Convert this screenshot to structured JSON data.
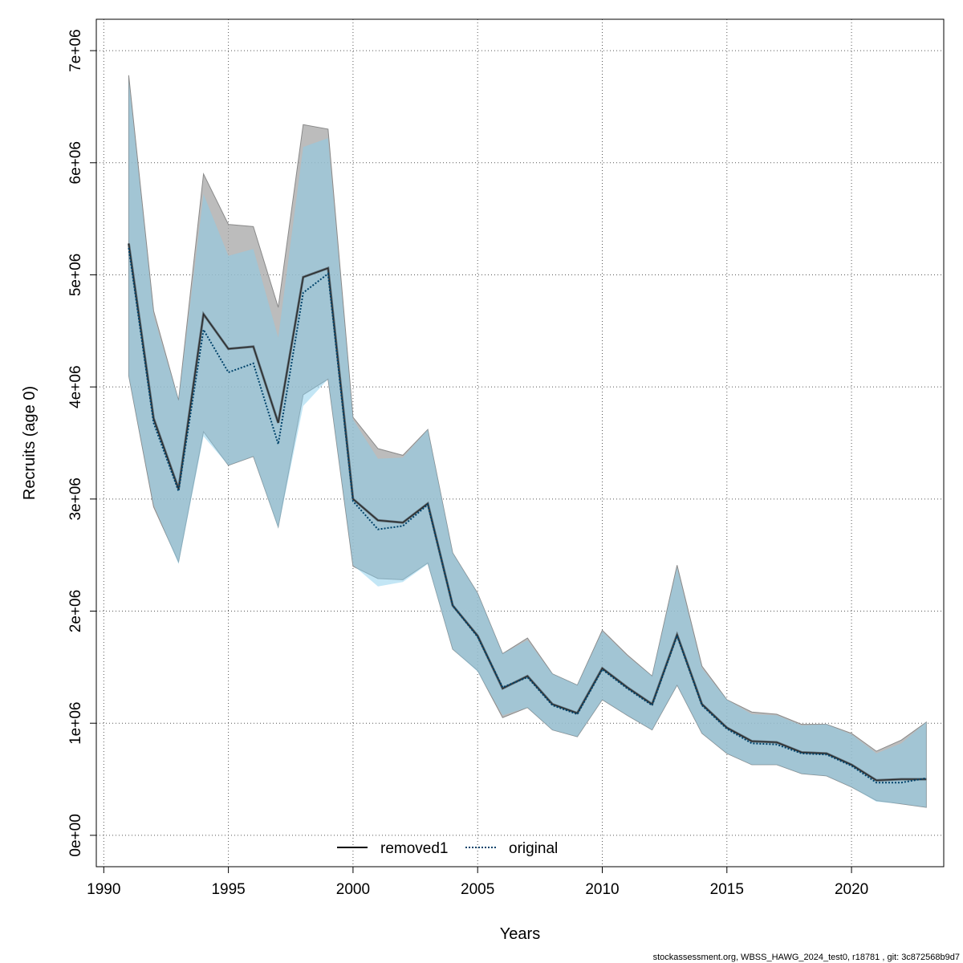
{
  "chart_data": {
    "type": "line",
    "title": "",
    "xlabel": "Years",
    "ylabel": "Recruits (age 0)",
    "xlim": [
      1990,
      2023
    ],
    "ylim": [
      0,
      7000000
    ],
    "x_ticks": [
      1990,
      1995,
      2000,
      2005,
      2010,
      2015,
      2020
    ],
    "x_tick_labels": [
      "1990",
      "1995",
      "2000",
      "2005",
      "2010",
      "2015",
      "2020"
    ],
    "y_ticks": [
      0,
      1000000,
      2000000,
      3000000,
      4000000,
      5000000,
      6000000,
      7000000
    ],
    "y_tick_labels": [
      "0e+00",
      "1e+06",
      "2e+06",
      "3e+06",
      "4e+06",
      "5e+06",
      "6e+06",
      "7e+06"
    ],
    "grid": true,
    "legend_position": "bottom-center",
    "x": [
      1991,
      1992,
      1993,
      1994,
      1995,
      1996,
      1997,
      1998,
      1999,
      2000,
      2001,
      2002,
      2003,
      2004,
      2005,
      2006,
      2007,
      2008,
      2009,
      2010,
      2011,
      2012,
      2013,
      2014,
      2015,
      2016,
      2017,
      2018,
      2019,
      2020,
      2021,
      2022,
      2023
    ],
    "series": [
      {
        "name": "removed1",
        "line_color": "#000000",
        "line_style": "solid",
        "band_color": "#a6a6a6",
        "values": [
          5280000,
          3720000,
          3090000,
          4650000,
          4340000,
          4360000,
          3680000,
          4980000,
          5060000,
          3000000,
          2810000,
          2790000,
          2960000,
          2050000,
          1780000,
          1310000,
          1420000,
          1170000,
          1090000,
          1490000,
          1320000,
          1170000,
          1790000,
          1170000,
          960000,
          840000,
          830000,
          740000,
          730000,
          630000,
          490000,
          500000,
          500000
        ],
        "lower": [
          4100000,
          2930000,
          2440000,
          3600000,
          3300000,
          3380000,
          2750000,
          3930000,
          4070000,
          2400000,
          2290000,
          2280000,
          2430000,
          1660000,
          1470000,
          1050000,
          1140000,
          940000,
          880000,
          1210000,
          1070000,
          940000,
          1340000,
          910000,
          730000,
          630000,
          630000,
          550000,
          530000,
          430000,
          310000,
          280000,
          250000
        ],
        "upper": [
          6780000,
          4680000,
          3880000,
          5900000,
          5450000,
          5430000,
          4710000,
          6340000,
          6300000,
          3730000,
          3450000,
          3390000,
          3620000,
          2520000,
          2160000,
          1620000,
          1760000,
          1440000,
          1340000,
          1830000,
          1610000,
          1420000,
          2410000,
          1510000,
          1210000,
          1100000,
          1080000,
          990000,
          990000,
          910000,
          750000,
          850000,
          1010000
        ]
      },
      {
        "name": "original",
        "line_color": "#00436b",
        "line_style": "dotted",
        "band_color": "#87ceeb",
        "values": [
          5240000,
          3680000,
          3070000,
          4510000,
          4130000,
          4210000,
          3490000,
          4840000,
          5010000,
          2980000,
          2730000,
          2760000,
          2950000,
          2050000,
          1770000,
          1320000,
          1410000,
          1160000,
          1080000,
          1480000,
          1310000,
          1160000,
          1780000,
          1160000,
          950000,
          820000,
          810000,
          730000,
          720000,
          620000,
          470000,
          470000,
          510000
        ],
        "lower": [
          4100000,
          2950000,
          2420000,
          3560000,
          3300000,
          3380000,
          2740000,
          3830000,
          4070000,
          2410000,
          2220000,
          2260000,
          2420000,
          1660000,
          1460000,
          1070000,
          1140000,
          940000,
          880000,
          1210000,
          1070000,
          940000,
          1340000,
          910000,
          730000,
          630000,
          630000,
          550000,
          530000,
          430000,
          300000,
          280000,
          250000
        ],
        "upper": [
          6740000,
          4640000,
          3880000,
          5720000,
          5170000,
          5230000,
          4440000,
          6140000,
          6220000,
          3710000,
          3360000,
          3370000,
          3620000,
          2520000,
          2160000,
          1620000,
          1740000,
          1440000,
          1340000,
          1820000,
          1600000,
          1420000,
          2390000,
          1490000,
          1210000,
          1080000,
          1070000,
          980000,
          990000,
          900000,
          730000,
          820000,
          1010000
        ]
      }
    ],
    "footer": "stockassessment.org, WBSS_HAWG_2024_test0, r18781 , git: 3c872568b9d7"
  }
}
